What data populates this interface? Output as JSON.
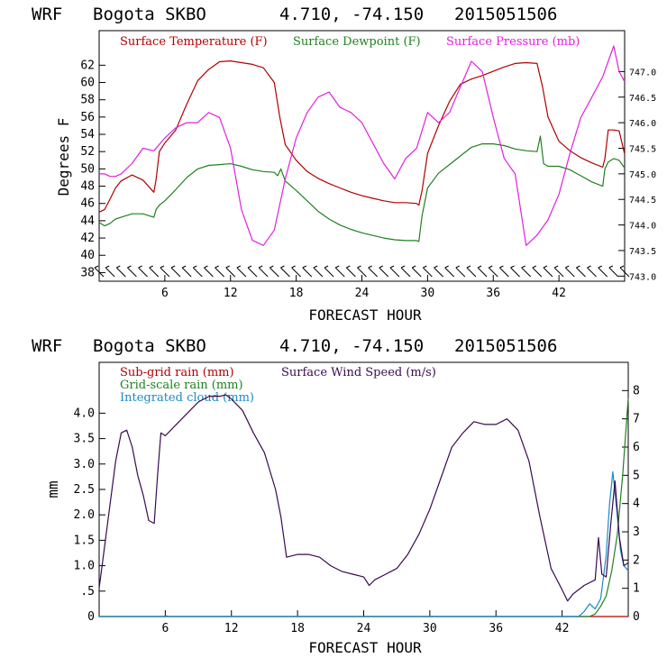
{
  "chart_data": [
    {
      "type": "line",
      "title": {
        "model": "WRF",
        "station": "Bogota SKBO",
        "coords": "4.710, -74.150",
        "run": "2015051506"
      },
      "xlabel": "FORECAST HOUR",
      "ylabel": "Degrees F",
      "xlim": [
        0,
        48
      ],
      "ylim": [
        37,
        66
      ],
      "y2lim": [
        742.9,
        747.8
      ],
      "x_ticks": [
        "6",
        "12",
        "18",
        "24",
        "30",
        "36",
        "42"
      ],
      "x_tick_values": [
        6,
        12,
        18,
        24,
        30,
        36,
        42
      ],
      "y_ticks": [
        "38",
        "40",
        "42",
        "44",
        "46",
        "48",
        "50",
        "52",
        "54",
        "56",
        "58",
        "60",
        "62"
      ],
      "y_tick_values": [
        38,
        40,
        42,
        44,
        46,
        48,
        50,
        52,
        54,
        56,
        58,
        60,
        62
      ],
      "y2_ticks": [
        "743.0",
        "743.5",
        "744.0",
        "744.5",
        "745.0",
        "745.5",
        "746.0",
        "746.5",
        "747.0"
      ],
      "y2_tick_values": [
        743.0,
        743.5,
        744.0,
        744.5,
        745.0,
        745.5,
        746.0,
        746.5,
        747.0
      ],
      "wind_barbs_label": "",
      "series": [
        {
          "name": "Surface Temperature (F)",
          "color": "#b00000",
          "axis": "left",
          "x": [
            0,
            0.5,
            1,
            1.5,
            2,
            3,
            4,
            5,
            5.2,
            5.5,
            6,
            7,
            8,
            9,
            10,
            11,
            12,
            13,
            14,
            15,
            16,
            16.5,
            17,
            18,
            19,
            20,
            21,
            22,
            23,
            24,
            25,
            26,
            27,
            28,
            29,
            29.2,
            29.5,
            30,
            31,
            32,
            33,
            34,
            35,
            36,
            37,
            38,
            39,
            40,
            40.5,
            41,
            42,
            43,
            44,
            45,
            46,
            46.2,
            46.5,
            47,
            47.5,
            48
          ],
          "values": [
            45,
            45.3,
            46.5,
            47.8,
            48.6,
            49.3,
            48.7,
            47.3,
            48.8,
            52.0,
            53.0,
            54.5,
            57.5,
            60.2,
            61.5,
            62.4,
            62.5,
            62.3,
            62.1,
            61.7,
            60.0,
            56.0,
            52.8,
            51.0,
            49.7,
            48.9,
            48.3,
            47.8,
            47.3,
            46.9,
            46.6,
            46.3,
            46.1,
            46.1,
            46.0,
            45.8,
            47.5,
            51.8,
            55.0,
            57.8,
            59.8,
            60.4,
            60.8,
            61.3,
            61.8,
            62.2,
            62.3,
            62.2,
            59.5,
            56.0,
            53.2,
            52.1,
            51.3,
            50.7,
            50.2,
            51.2,
            54.5,
            54.5,
            54.4,
            51.7
          ]
        },
        {
          "name": "Surface Dewpoint (F)",
          "color": "#208020",
          "axis": "left",
          "x": [
            0,
            0.5,
            1,
            1.5,
            2,
            3,
            4,
            5,
            5.2,
            5.5,
            6,
            7,
            8,
            9,
            10,
            11,
            12,
            13,
            14,
            15,
            16,
            16.3,
            16.6,
            17,
            18,
            19,
            20,
            21,
            22,
            23,
            24,
            25,
            26,
            27,
            28,
            29,
            29.2,
            29.5,
            30,
            31,
            32,
            33,
            34,
            35,
            36,
            37,
            38,
            39,
            40,
            40.3,
            40.6,
            41,
            42,
            43,
            44,
            45,
            46,
            46.2,
            46.5,
            47,
            47.5,
            48
          ],
          "values": [
            43.8,
            43.4,
            43.7,
            44.2,
            44.4,
            44.8,
            44.8,
            44.4,
            45.3,
            45.8,
            46.3,
            47.6,
            49.0,
            50.0,
            50.4,
            50.5,
            50.6,
            50.3,
            49.9,
            49.7,
            49.6,
            49.2,
            50.0,
            48.6,
            47.5,
            46.3,
            45.1,
            44.2,
            43.5,
            43.0,
            42.6,
            42.3,
            42.0,
            41.8,
            41.7,
            41.7,
            41.6,
            44.6,
            47.8,
            49.5,
            50.5,
            51.5,
            52.5,
            52.9,
            52.9,
            52.7,
            52.3,
            52.1,
            52.0,
            53.8,
            50.6,
            50.3,
            50.3,
            49.9,
            49.2,
            48.5,
            48.0,
            50.0,
            50.8,
            51.2,
            51.0,
            50.1
          ]
        },
        {
          "name": "Surface Pressure (mb)",
          "color": "#e020e0",
          "axis": "right",
          "x": [
            0,
            0.5,
            1,
            1.5,
            2,
            3,
            4,
            5,
            6,
            7,
            8,
            9,
            10,
            11,
            12,
            13,
            14,
            15,
            16,
            17,
            18,
            19,
            20,
            21,
            22,
            23,
            24,
            25,
            26,
            27,
            28,
            29,
            30,
            31,
            32,
            33,
            34,
            35,
            36,
            37,
            38,
            39,
            40,
            41,
            42,
            43,
            44,
            45,
            46,
            47,
            47.5,
            48
          ],
          "values": [
            745.0,
            745.0,
            744.95,
            744.95,
            745.0,
            745.2,
            745.5,
            745.45,
            745.7,
            745.9,
            746.0,
            746.0,
            746.2,
            746.1,
            745.5,
            744.3,
            743.7,
            743.6,
            743.9,
            744.9,
            745.7,
            746.2,
            746.5,
            746.6,
            746.3,
            746.2,
            746.0,
            745.6,
            745.2,
            744.9,
            745.3,
            745.5,
            746.2,
            746.0,
            746.2,
            746.7,
            747.2,
            747.0,
            746.1,
            745.3,
            745.0,
            743.6,
            743.8,
            744.1,
            744.6,
            745.4,
            746.1,
            746.5,
            746.9,
            747.5,
            747.0,
            746.8
          ]
        }
      ],
      "wind_barb_hours": [
        0,
        1,
        2,
        3,
        4,
        5,
        6,
        7,
        8,
        9,
        10,
        11,
        12,
        13,
        14,
        15,
        16,
        17,
        18,
        19,
        20,
        21,
        22,
        23,
        24,
        25,
        26,
        27,
        28,
        29,
        30,
        31,
        32,
        33,
        34,
        35,
        36,
        37,
        38,
        39,
        40,
        41,
        42,
        43,
        44,
        45,
        46,
        47,
        48
      ]
    },
    {
      "type": "line",
      "title": {
        "model": "WRF",
        "station": "Bogota SKBO",
        "coords": "4.710, -74.150",
        "run": "2015051506"
      },
      "xlabel": "FORECAST HOUR",
      "ylabel": "mm",
      "xlim": [
        0,
        48
      ],
      "ylim": [
        0,
        5.0
      ],
      "y2lim": [
        0,
        9.0
      ],
      "x_ticks": [
        "6",
        "12",
        "18",
        "24",
        "30",
        "36",
        "42"
      ],
      "x_tick_values": [
        6,
        12,
        18,
        24,
        30,
        36,
        42
      ],
      "y_ticks": [
        "0",
        ".5",
        "1.0",
        "1.5",
        "2.0",
        "2.5",
        "3.0",
        "3.5",
        "4.0"
      ],
      "y_tick_values": [
        0,
        0.5,
        1.0,
        1.5,
        2.0,
        2.5,
        3.0,
        3.5,
        4.0
      ],
      "y2_ticks": [
        "0",
        "1",
        "2",
        "3",
        "4",
        "5",
        "6",
        "7",
        "8"
      ],
      "y2_tick_values": [
        0,
        1,
        2,
        3,
        4,
        5,
        6,
        7,
        8
      ],
      "legend": [
        "Sub-grid rain (mm)",
        "Grid-scale rain (mm)",
        "Integrated cloud (mm)",
        "Surface Wind Speed (m/s)"
      ],
      "series": [
        {
          "name": "Sub-grid rain (mm)",
          "color": "#b00000",
          "axis": "left",
          "x": [
            0,
            48
          ],
          "values": [
            0,
            0
          ]
        },
        {
          "name": "Grid-scale rain (mm)",
          "color": "#208020",
          "axis": "left",
          "x": [
            0,
            5.9,
            6.0,
            6.3,
            44.5,
            45,
            45.5,
            46,
            46.5,
            47,
            47.5,
            48
          ],
          "values": [
            0,
            0,
            0.02,
            0,
            0,
            0.05,
            0.2,
            0.4,
            0.9,
            1.6,
            2.8,
            4.3
          ]
        },
        {
          "name": "Integrated cloud (mm)",
          "color": "#1a8ac8",
          "axis": "left",
          "x": [
            0,
            43.5,
            44,
            44.5,
            45,
            45.5,
            46,
            46.3,
            46.6,
            47,
            47.3,
            47.6,
            48
          ],
          "values": [
            0,
            0,
            0.1,
            0.25,
            0.15,
            0.35,
            1.2,
            2.2,
            2.85,
            2.0,
            1.3,
            1.0,
            0.9
          ]
        },
        {
          "name": "Surface Wind Speed (m/s)",
          "color": "#3a0a50",
          "axis": "right",
          "x": [
            0,
            0.5,
            1,
            1.5,
            2,
            2.5,
            3,
            3.5,
            4,
            4.5,
            5,
            5.3,
            5.6,
            6,
            7,
            8,
            9,
            10,
            11,
            11.5,
            12,
            13,
            14,
            15,
            16,
            16.5,
            17,
            18,
            19,
            20,
            21,
            22,
            23,
            24,
            24.5,
            25,
            26,
            27,
            28,
            29,
            30,
            31,
            32,
            33,
            34,
            35,
            36,
            37,
            38,
            39,
            40,
            41,
            42,
            42.5,
            43,
            44,
            45,
            45.3,
            45.6,
            46,
            46.4,
            46.8,
            47.2,
            47.6,
            48
          ],
          "values": [
            1.0,
            2.5,
            4.0,
            5.5,
            6.5,
            6.6,
            6.0,
            5.0,
            4.3,
            3.4,
            3.3,
            5.0,
            6.5,
            6.4,
            6.8,
            7.2,
            7.6,
            7.8,
            7.8,
            7.85,
            7.7,
            7.3,
            6.5,
            5.8,
            4.5,
            3.5,
            2.1,
            2.2,
            2.2,
            2.1,
            1.8,
            1.6,
            1.5,
            1.4,
            1.1,
            1.3,
            1.5,
            1.7,
            2.2,
            2.9,
            3.8,
            4.9,
            6.0,
            6.5,
            6.9,
            6.8,
            6.8,
            7.0,
            6.6,
            5.5,
            3.5,
            1.7,
            0.95,
            0.55,
            0.8,
            1.1,
            1.3,
            2.8,
            1.5,
            1.4,
            3.2,
            4.8,
            2.8,
            1.8,
            1.9
          ]
        }
      ]
    }
  ],
  "colors": {
    "temperature": "#b00000",
    "dewpoint": "#208020",
    "pressure": "#e020e0",
    "wind": "#3a0a50",
    "cloud": "#1a8ac8"
  }
}
